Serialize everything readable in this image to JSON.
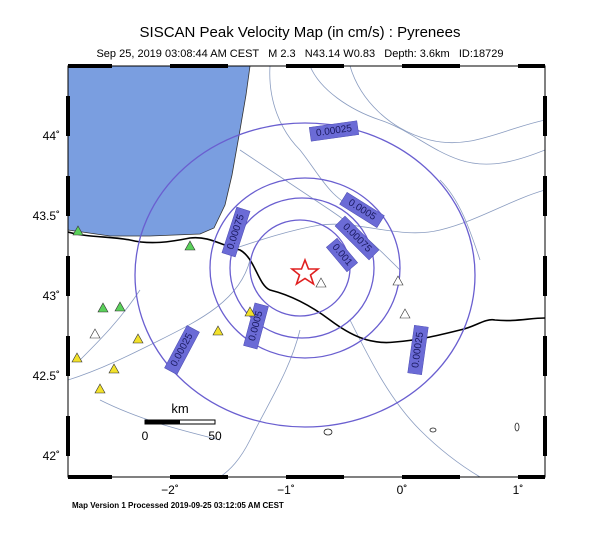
{
  "header": {
    "title": "SISCAN Peak Velocity Map (in cm/s) : Pyrenees",
    "subtitle": "Sep 25, 2019 03:08:44 AM CEST   M 2.3   N43.14 W0.83   Depth: 3.6km   ID:18729"
  },
  "axes": {
    "lat_labels": [
      "44˚",
      "43.5˚",
      "43˚",
      "42.5˚",
      "42˚"
    ],
    "lon_labels": [
      "−2˚",
      "−1˚",
      "0˚",
      "1˚"
    ]
  },
  "contour_labels": [
    "0.00025",
    "0.0005",
    "0.00075",
    "0.001",
    "0.00075",
    "0.0005",
    "0.00025",
    "0.00025"
  ],
  "scale": {
    "unit": "km",
    "start": "0",
    "end": "50"
  },
  "footer": "Map Version 1 Processed 2019-09-25 03:12:05 AM CEST"
}
